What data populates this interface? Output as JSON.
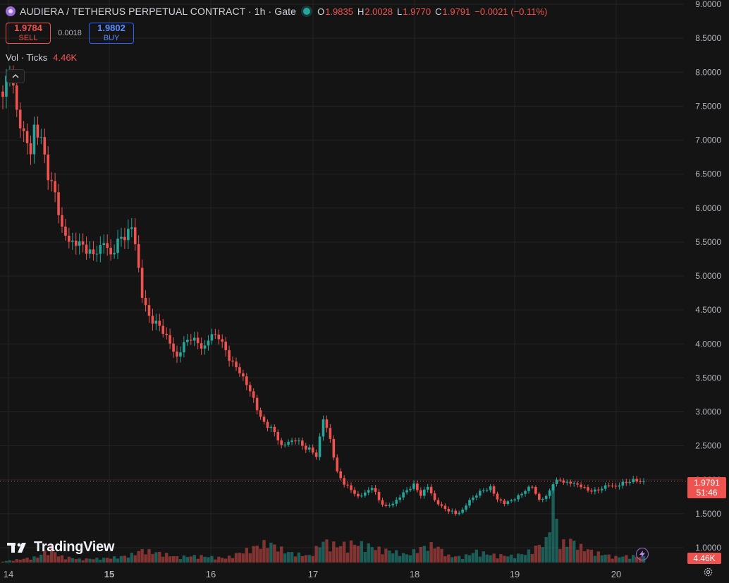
{
  "header": {
    "title": "AUDIERA / TETHERUS PERPETUAL CONTRACT · 1h · Gate",
    "ohlc": {
      "o_label": "O",
      "o": "1.9835",
      "h_label": "H",
      "h": "2.0028",
      "l_label": "L",
      "l": "1.9770",
      "c_label": "C",
      "c": "1.9791"
    },
    "change": "−0.0021 (−0.11%)"
  },
  "trade": {
    "sell_price": "1.9784",
    "sell_label": "SELL",
    "spread": "0.0018",
    "buy_price": "1.9802",
    "buy_label": "BUY"
  },
  "volume_legend": {
    "label": "Vol · Ticks",
    "value": "4.46K"
  },
  "collapse_glyph": "^",
  "price_tag": {
    "price": "1.9791",
    "countdown": "51:46"
  },
  "volume_tag": "4.46K",
  "branding": "TradingView",
  "colors": {
    "up": "#26a69a",
    "down": "#ef5350",
    "background": "#141414",
    "grid": "#242424"
  },
  "chart_data": {
    "type": "candlestick",
    "timeframe": "1h",
    "y_ticks": [
      "9.0000",
      "8.5000",
      "8.0000",
      "7.5000",
      "7.0000",
      "6.5000",
      "6.0000",
      "5.5000",
      "5.0000",
      "4.5000",
      "4.0000",
      "3.5000",
      "3.0000",
      "2.5000",
      "2.0000",
      "1.5000",
      "1.0000"
    ],
    "ylim": [
      1.0,
      9.0
    ],
    "x_ticks": [
      "14",
      "15",
      "16",
      "17",
      "18",
      "19",
      "20"
    ],
    "grid": true,
    "last_price": 1.9791,
    "series": [
      {
        "name": "Price",
        "anchors": [
          [
            0,
            7.6
          ],
          [
            1,
            7.9
          ],
          [
            2,
            8.1
          ],
          [
            4,
            7.4
          ],
          [
            6,
            7.1
          ],
          [
            8,
            6.8
          ],
          [
            9,
            7.2
          ],
          [
            11,
            7.0
          ],
          [
            13,
            6.5
          ],
          [
            15,
            6.2
          ],
          [
            17,
            5.7
          ],
          [
            19,
            5.5
          ],
          [
            21,
            5.5
          ],
          [
            24,
            5.4
          ],
          [
            26,
            5.3
          ],
          [
            29,
            5.5
          ],
          [
            31,
            5.3
          ],
          [
            33,
            5.5
          ],
          [
            35,
            5.6
          ],
          [
            37,
            5.7
          ],
          [
            38,
            5.5
          ],
          [
            40,
            4.7
          ],
          [
            42,
            4.4
          ],
          [
            44,
            4.3
          ],
          [
            46,
            4.2
          ],
          [
            48,
            4.0
          ],
          [
            50,
            3.8
          ],
          [
            52,
            4.0
          ],
          [
            54,
            4.1
          ],
          [
            56,
            4.0
          ],
          [
            58,
            3.95
          ],
          [
            60,
            4.15
          ],
          [
            62,
            4.1
          ],
          [
            64,
            3.9
          ],
          [
            66,
            3.7
          ],
          [
            68,
            3.6
          ],
          [
            70,
            3.4
          ],
          [
            72,
            3.2
          ],
          [
            74,
            2.9
          ],
          [
            76,
            2.8
          ],
          [
            78,
            2.7
          ],
          [
            80,
            2.5
          ],
          [
            82,
            2.55
          ],
          [
            84,
            2.6
          ],
          [
            86,
            2.5
          ],
          [
            88,
            2.45
          ],
          [
            90,
            2.35
          ],
          [
            92,
            2.9
          ],
          [
            94,
            2.6
          ],
          [
            96,
            2.1
          ],
          [
            98,
            1.95
          ],
          [
            100,
            1.85
          ],
          [
            102,
            1.75
          ],
          [
            104,
            1.8
          ],
          [
            106,
            1.9
          ],
          [
            108,
            1.7
          ],
          [
            110,
            1.6
          ],
          [
            112,
            1.65
          ],
          [
            114,
            1.75
          ],
          [
            116,
            1.85
          ],
          [
            118,
            1.92
          ],
          [
            120,
            1.78
          ],
          [
            122,
            1.9
          ],
          [
            124,
            1.7
          ],
          [
            126,
            1.6
          ],
          [
            128,
            1.55
          ],
          [
            130,
            1.5
          ],
          [
            132,
            1.55
          ],
          [
            134,
            1.7
          ],
          [
            136,
            1.78
          ],
          [
            138,
            1.85
          ],
          [
            140,
            1.88
          ],
          [
            142,
            1.72
          ],
          [
            144,
            1.65
          ],
          [
            146,
            1.7
          ],
          [
            148,
            1.75
          ],
          [
            150,
            1.85
          ],
          [
            152,
            1.9
          ],
          [
            154,
            1.7
          ],
          [
            156,
            1.75
          ],
          [
            158,
            1.95
          ],
          [
            160,
            2.0
          ],
          [
            162,
            1.95
          ],
          [
            164,
            1.95
          ],
          [
            166,
            1.9
          ],
          [
            168,
            1.85
          ],
          [
            170,
            1.83
          ],
          [
            172,
            1.88
          ],
          [
            174,
            1.92
          ],
          [
            176,
            1.9
          ],
          [
            178,
            1.95
          ],
          [
            180,
            1.98
          ],
          [
            182,
            1.99
          ],
          [
            184,
            1.9791
          ]
        ]
      },
      {
        "name": "Vol · Ticks",
        "peaks": [
          [
            0,
            0.05
          ],
          [
            5,
            0.15
          ],
          [
            10,
            0.25
          ],
          [
            14,
            0.7
          ],
          [
            16,
            0.3
          ],
          [
            22,
            0.15
          ],
          [
            30,
            0.2
          ],
          [
            36,
            0.3
          ],
          [
            40,
            0.55
          ],
          [
            46,
            0.4
          ],
          [
            50,
            0.25
          ],
          [
            56,
            0.3
          ],
          [
            64,
            0.2
          ],
          [
            70,
            0.55
          ],
          [
            76,
            0.9
          ],
          [
            82,
            0.45
          ],
          [
            88,
            0.3
          ],
          [
            92,
            0.95
          ],
          [
            96,
            0.75
          ],
          [
            100,
            0.85
          ],
          [
            104,
            0.8
          ],
          [
            108,
            0.6
          ],
          [
            112,
            0.5
          ],
          [
            116,
            0.35
          ],
          [
            120,
            0.65
          ],
          [
            124,
            0.8
          ],
          [
            128,
            0.3
          ],
          [
            132,
            0.25
          ],
          [
            136,
            0.5
          ],
          [
            140,
            0.35
          ],
          [
            146,
            0.3
          ],
          [
            150,
            0.4
          ],
          [
            156,
            0.95
          ],
          [
            158,
            2.9
          ],
          [
            160,
            0.8
          ],
          [
            163,
            1.0
          ],
          [
            166,
            0.7
          ],
          [
            170,
            0.45
          ],
          [
            176,
            0.25
          ],
          [
            180,
            0.3
          ],
          [
            184,
            0.25
          ]
        ]
      }
    ]
  }
}
